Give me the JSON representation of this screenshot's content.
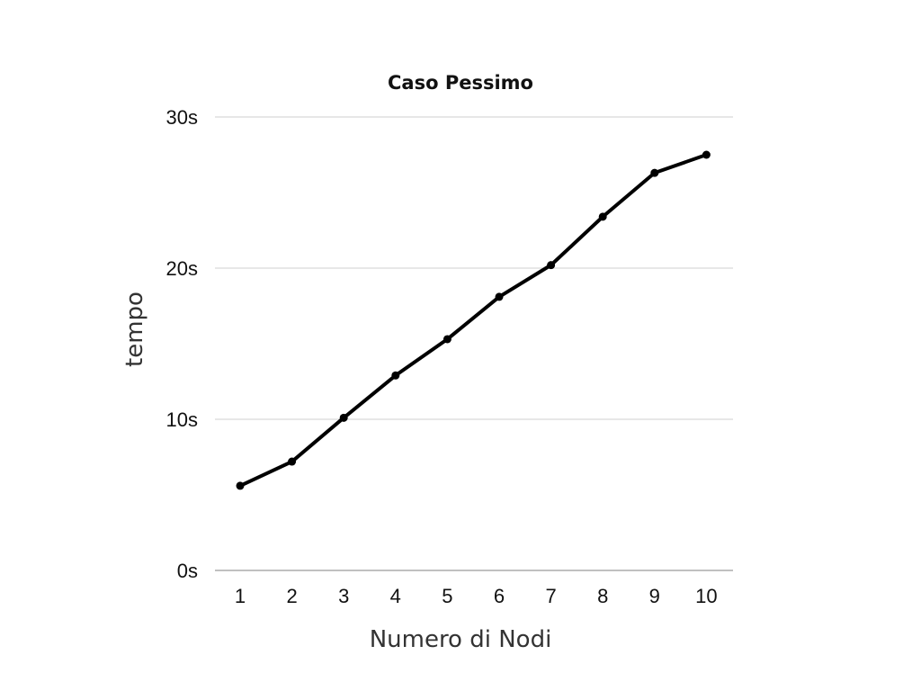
{
  "chart_data": {
    "type": "line",
    "title": "Caso Pessimo",
    "xlabel": "Numero di Nodi",
    "ylabel": "tempo",
    "categories": [
      "1",
      "2",
      "3",
      "4",
      "5",
      "6",
      "7",
      "8",
      "9",
      "10"
    ],
    "y_ticks": [
      "0s",
      "10s",
      "20s",
      "30s"
    ],
    "ylim": [
      0,
      30
    ],
    "grid": true,
    "legend": "none",
    "series": [
      {
        "values": [
          5.6,
          7.2,
          10.1,
          12.9,
          15.3,
          18.1,
          20.2,
          23.4,
          26.3,
          27.5
        ]
      }
    ],
    "colors": {
      "line": "#000000",
      "grid": "#cfcfcf",
      "axis": "#9a9a9a"
    }
  }
}
